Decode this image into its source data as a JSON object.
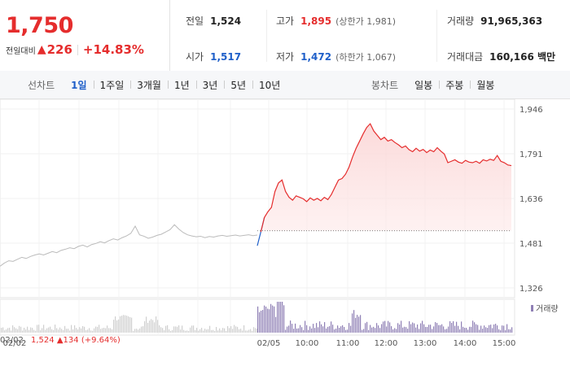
{
  "summary": {
    "price": "1,750",
    "change_label": "전일대비",
    "change_arrow": "▲",
    "change_value": "226",
    "change_pct": "+14.83%"
  },
  "stats": {
    "prev_close_label": "전일",
    "prev_close": "1,524",
    "open_label": "시가",
    "open": "1,517",
    "high_label": "고가",
    "high": "1,895",
    "upper_limit": "(상한가 1,981)",
    "low_label": "저가",
    "low": "1,472",
    "lower_limit": "(하한가 1,067)",
    "volume_label": "거래량",
    "volume": "91,965,363",
    "amount_label": "거래대금",
    "amount": "160,166 백만"
  },
  "toolbar": {
    "line_title": "선차트",
    "line_items": [
      "1일",
      "1주일",
      "3개월",
      "1년",
      "3년",
      "5년",
      "10년"
    ],
    "candle_title": "봉차트",
    "candle_items": [
      "일봉",
      "주봉",
      "월봉"
    ]
  },
  "colors": {
    "up": "#e52d2d",
    "down": "#1f5fc9",
    "prev": "#bbbbbb",
    "volume": "#8f7fb5"
  },
  "chart_data": {
    "type": "line",
    "y_ticks": [
      "1,946",
      "1,791",
      "1,636",
      "1,481",
      "1,326"
    ],
    "y_tick_values": [
      1946,
      1791,
      1636,
      1481,
      1326
    ],
    "x_ticks": [
      "02/02",
      "02/05",
      "10:00",
      "11:00",
      "12:00",
      "13:00",
      "14:00",
      "15:00"
    ],
    "prev_close": 1524,
    "series": [
      {
        "values": [
          1401,
          1412,
          1420,
          1418,
          1425,
          1432,
          1428,
          1435,
          1440,
          1444,
          1440,
          1446,
          1452,
          1448,
          1456,
          1460,
          1465,
          1462,
          1470,
          1474,
          1468,
          1476,
          1480,
          1486,
          1482,
          1490,
          1496,
          1492,
          1500,
          1506,
          1515,
          1540,
          1510,
          1505,
          1498,
          1502,
          1508,
          1512,
          1520,
          1528,
          1545,
          1530,
          1518,
          1510,
          1506,
          1503,
          1505,
          1500,
          1504,
          1502,
          1506,
          1508,
          1505,
          1507,
          1509,
          1506,
          1508,
          1510,
          1507,
          1509
        ]
      },
      {
        "values": [
          1472,
          1520,
          1570,
          1590,
          1605,
          1660,
          1690,
          1700,
          1660,
          1640,
          1630,
          1645,
          1640,
          1635,
          1625,
          1638,
          1630,
          1636,
          1628,
          1640,
          1632,
          1650,
          1675,
          1700,
          1705,
          1720,
          1745,
          1780,
          1810,
          1835,
          1860,
          1882,
          1895,
          1870,
          1855,
          1840,
          1848,
          1835,
          1840,
          1830,
          1822,
          1812,
          1818,
          1805,
          1798,
          1810,
          1800,
          1806,
          1795,
          1804,
          1798,
          1812,
          1800,
          1790,
          1760,
          1765,
          1770,
          1762,
          1758,
          1768,
          1762,
          1760,
          1765,
          1758,
          1770,
          1766,
          1772,
          1768,
          1785,
          1765,
          1760,
          1752,
          1750
        ]
      }
    ]
  },
  "volume_legend": "거래량",
  "bottom_info": {
    "date": "02/02",
    "price": "1,524",
    "arrow": "▲",
    "change": "134",
    "pct": "(+9.64%)"
  }
}
